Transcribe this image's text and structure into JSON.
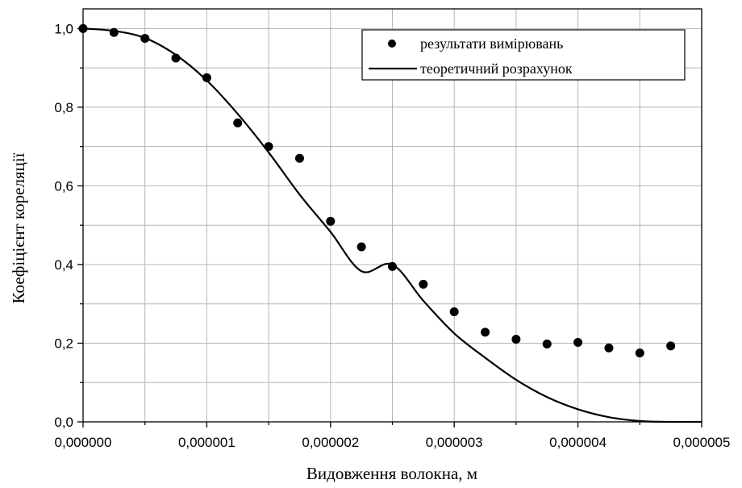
{
  "chart_data": {
    "type": "line",
    "xlabel": "Видовження волокна, м",
    "ylabel": "Коефіцієнт кореляції",
    "xlim": [
      0,
      5e-06
    ],
    "ylim": [
      0,
      1.05
    ],
    "x_ticks": [
      "0,000000",
      "0,000001",
      "0,000002",
      "0,000003",
      "0,000004",
      "0,000005"
    ],
    "x_tick_values": [
      0,
      1e-06,
      2e-06,
      3e-06,
      4e-06,
      5e-06
    ],
    "y_ticks": [
      "0,0",
      "0,2",
      "0,4",
      "0,6",
      "0,8",
      "1,0"
    ],
    "y_tick_values": [
      0,
      0.2,
      0.4,
      0.6,
      0.8,
      1.0
    ],
    "grid": true,
    "legend_position": "top-right",
    "series": [
      {
        "name": "результати вимірювань",
        "type": "scatter",
        "color": "#000000",
        "x": [
          0,
          2.5e-07,
          5e-07,
          7.5e-07,
          1e-06,
          1.25e-06,
          1.5e-06,
          1.75e-06,
          2e-06,
          2.25e-06,
          2.5e-06,
          2.75e-06,
          3e-06,
          3.25e-06,
          3.5e-06,
          3.75e-06,
          4e-06,
          4.25e-06,
          4.5e-06,
          4.75e-06
        ],
        "y": [
          1.0,
          0.99,
          0.975,
          0.925,
          0.875,
          0.76,
          0.7,
          0.67,
          0.51,
          0.445,
          0.395,
          0.35,
          0.28,
          0.228,
          0.21,
          0.198,
          0.202,
          0.188,
          0.175,
          0.193
        ]
      },
      {
        "name": "теоретичний розрахунок",
        "type": "line",
        "color": "#000000",
        "x": [
          0,
          2.5e-07,
          5e-07,
          7.5e-07,
          1e-06,
          1.25e-06,
          1.5e-06,
          1.75e-06,
          2e-06,
          2.25e-06,
          2.5e-06,
          2.75e-06,
          3e-06,
          3.25e-06,
          3.5e-06,
          3.75e-06,
          4e-06,
          4.25e-06,
          4.5e-06,
          4.75e-06,
          5e-06
        ],
        "y": [
          1.0,
          0.994,
          0.976,
          0.933,
          0.868,
          0.783,
          0.685,
          0.578,
          0.483,
          0.383,
          0.4,
          0.308,
          0.225,
          0.163,
          0.107,
          0.063,
          0.032,
          0.012,
          0.002,
          0.0,
          0.0
        ]
      }
    ]
  }
}
